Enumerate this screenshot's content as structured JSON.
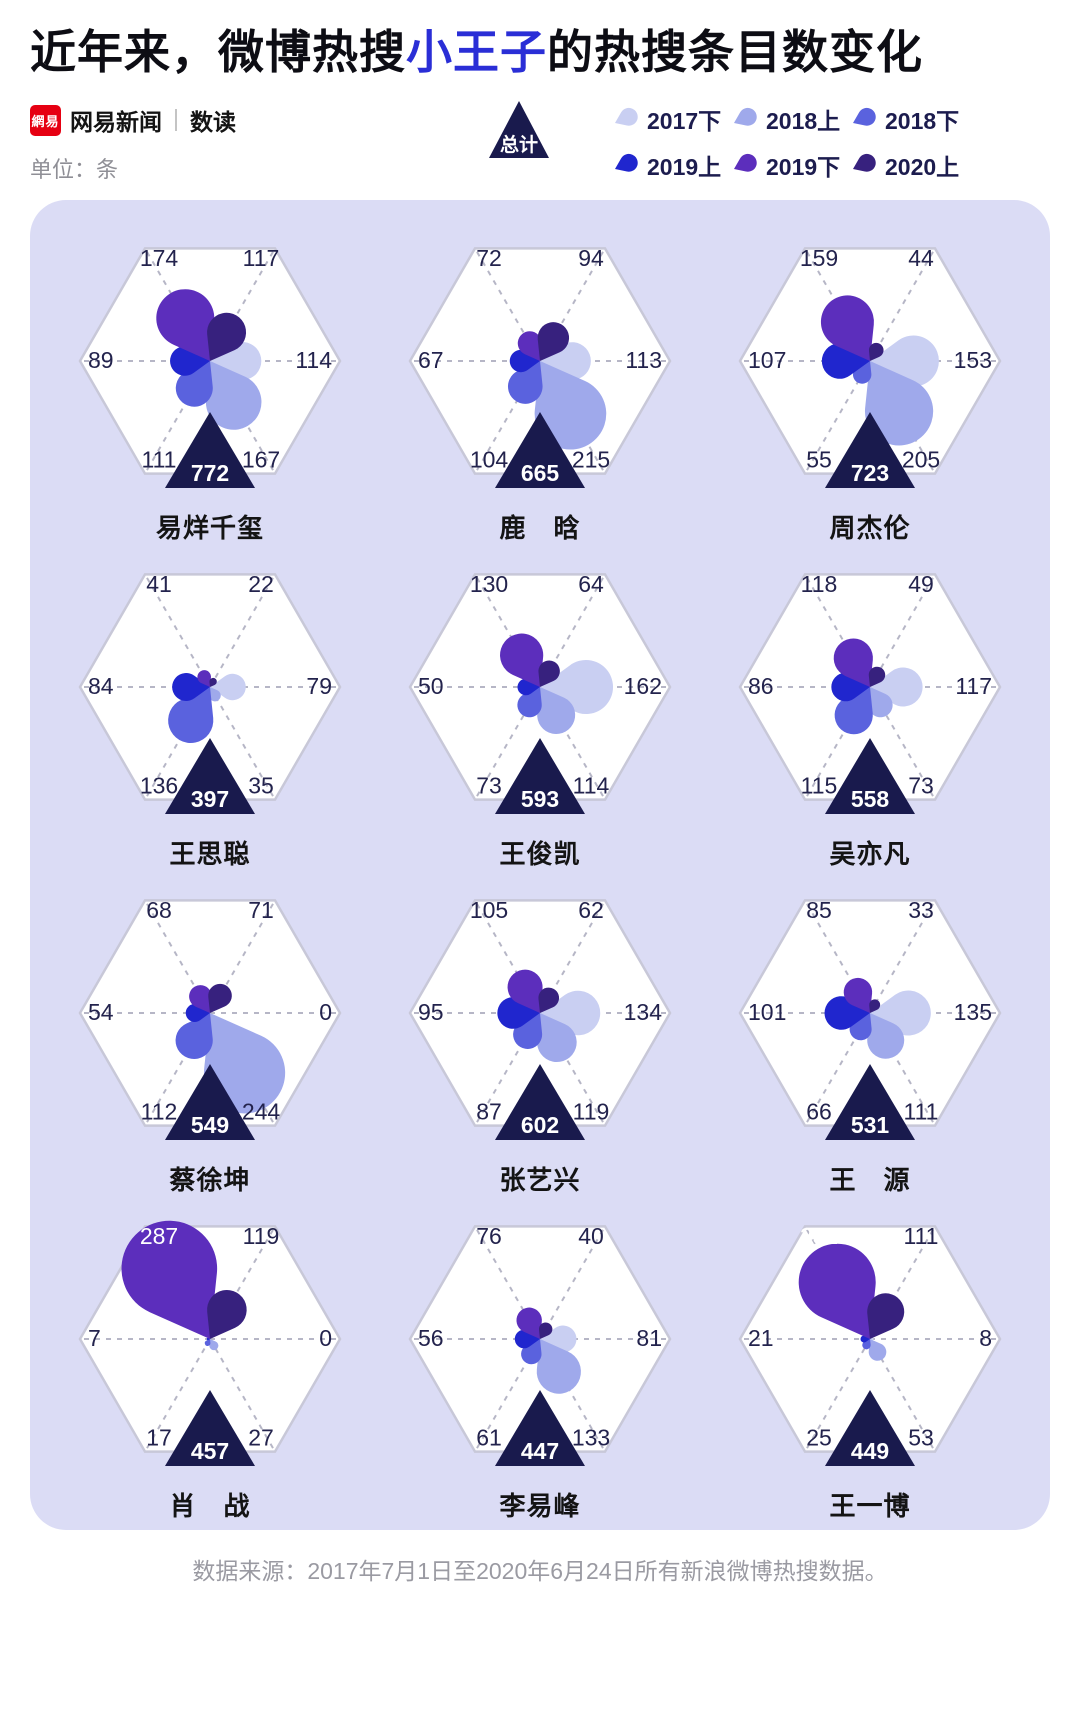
{
  "header": {
    "title": {
      "pre": "近年来，微博热搜",
      "highlight": "小王子",
      "post": "的热搜条目数变化"
    },
    "brand": {
      "logo_text": "網易",
      "name": "网易新闻",
      "sub": "数读"
    },
    "unit_label": "单位：条",
    "total_badge_label": "总计"
  },
  "footer": {
    "source": "数据来源：2017年7月1日至2020年6月24日所有新浪微博热搜数据。"
  },
  "chart_data": {
    "type": "bar",
    "variant": "radial-rose-hexagon",
    "unit": "条",
    "legend_position": "top-right",
    "note": "values arrays follow the period order below; petals radiate right, down-right, down-left, left, up-left, up-right",
    "periods": [
      {
        "label": "2017下",
        "color": "#c9cff2",
        "direction": "right"
      },
      {
        "label": "2018上",
        "color": "#9fa9eb",
        "direction": "down-right"
      },
      {
        "label": "2018下",
        "color": "#5a62de",
        "direction": "down-left"
      },
      {
        "label": "2019上",
        "color": "#2026ce",
        "direction": "left"
      },
      {
        "label": "2019下",
        "color": "#5c2ebc",
        "direction": "up-left"
      },
      {
        "label": "2020上",
        "color": "#37217e",
        "direction": "up-right"
      }
    ],
    "total_color": "#191a4d",
    "charts": [
      {
        "name": "易烊千玺",
        "total": 772,
        "values": [
          114,
          167,
          111,
          89,
          174,
          117
        ]
      },
      {
        "name": "鹿　晗",
        "total": 665,
        "values": [
          113,
          215,
          104,
          67,
          72,
          94
        ]
      },
      {
        "name": "周杰伦",
        "total": 723,
        "values": [
          153,
          205,
          55,
          107,
          159,
          44
        ]
      },
      {
        "name": "王思聪",
        "total": 397,
        "values": [
          79,
          35,
          136,
          84,
          41,
          22
        ]
      },
      {
        "name": "王俊凯",
        "total": 593,
        "values": [
          162,
          114,
          73,
          50,
          130,
          64
        ]
      },
      {
        "name": "吴亦凡",
        "total": 558,
        "values": [
          117,
          73,
          115,
          86,
          118,
          49
        ]
      },
      {
        "name": "蔡徐坤",
        "total": 549,
        "values": [
          0,
          244,
          112,
          54,
          68,
          71
        ]
      },
      {
        "name": "张艺兴",
        "total": 602,
        "values": [
          134,
          119,
          87,
          95,
          105,
          62
        ]
      },
      {
        "name": "王　源",
        "total": 531,
        "values": [
          135,
          111,
          66,
          101,
          85,
          33
        ]
      },
      {
        "name": "肖　战",
        "total": 457,
        "values": [
          0,
          27,
          17,
          7,
          287,
          119
        ]
      },
      {
        "name": "李易峰",
        "total": 447,
        "values": [
          81,
          133,
          61,
          56,
          76,
          40
        ]
      },
      {
        "name": "王一博",
        "total": 449,
        "values": [
          8,
          53,
          25,
          21,
          231,
          111
        ]
      }
    ]
  }
}
